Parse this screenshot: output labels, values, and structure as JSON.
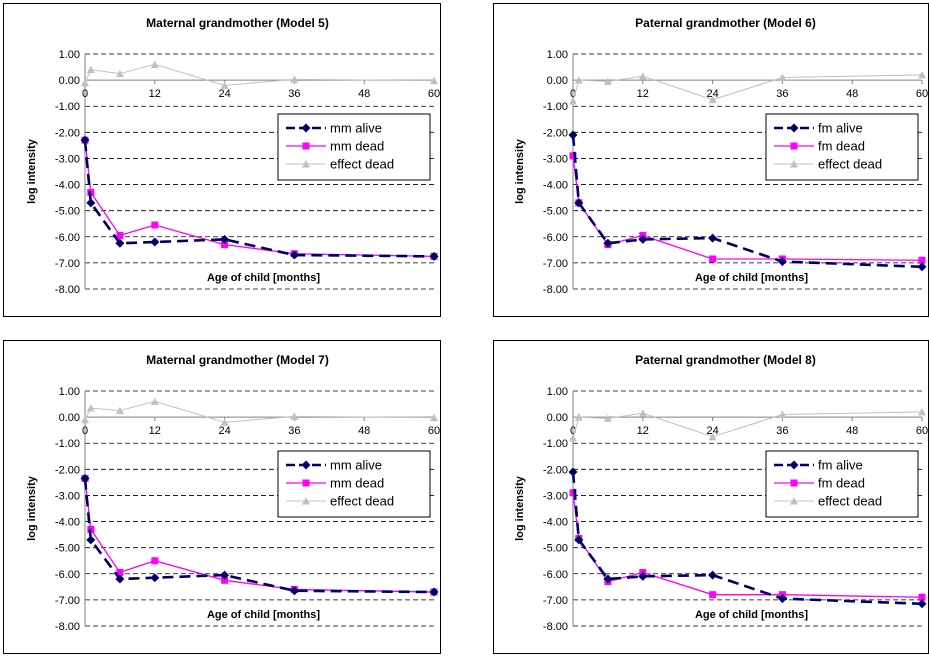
{
  "chart_data": [
    {
      "type": "line",
      "title": "Maternal grandmother (Model 5)",
      "xlabel": "Age of child [months]",
      "ylabel": "log intensity",
      "xlim": [
        0,
        60
      ],
      "ylim": [
        -8,
        1
      ],
      "x_ticks": [
        "0",
        "12",
        "24",
        "36",
        "48",
        "60"
      ],
      "y_ticks": [
        "1.00",
        "0.00",
        "-1.00",
        "-2.00",
        "-3.00",
        "-4.00",
        "-5.00",
        "-6.00",
        "-7.00",
        "-8.00"
      ],
      "legend_position": "right",
      "series": [
        {
          "name": "mm alive",
          "color": "#000066",
          "x": [
            0,
            1,
            6,
            12,
            24,
            36,
            60
          ],
          "y": [
            -2.3,
            -4.7,
            -6.25,
            -6.2,
            -6.1,
            -6.7,
            -6.75
          ]
        },
        {
          "name": "mm dead",
          "color": "#ff00ff",
          "x": [
            0,
            1,
            6,
            12,
            24,
            36,
            60
          ],
          "y": [
            -2.3,
            -4.3,
            -5.95,
            -5.55,
            -6.3,
            -6.65,
            -6.75
          ]
        },
        {
          "name": "effect dead",
          "color": "#c0c0c0",
          "x": [
            0,
            1,
            6,
            12,
            24,
            36,
            60
          ],
          "y": [
            -0.1,
            0.4,
            0.25,
            0.6,
            -0.2,
            0.03,
            -0.02
          ]
        }
      ]
    },
    {
      "type": "line",
      "title": "Paternal grandmother (Model 6)",
      "xlabel": "Age of child [months]",
      "ylabel": "log intensity",
      "xlim": [
        0,
        60
      ],
      "ylim": [
        -8,
        1
      ],
      "x_ticks": [
        "0",
        "12",
        "24",
        "36",
        "48",
        "60"
      ],
      "y_ticks": [
        "1.00",
        "0.00",
        "-1.00",
        "-2.00",
        "-3.00",
        "-4.00",
        "-5.00",
        "-6.00",
        "-7.00",
        "-8.00"
      ],
      "legend_position": "right",
      "series": [
        {
          "name": "fm alive",
          "color": "#000066",
          "x": [
            0,
            1,
            6,
            12,
            24,
            36,
            60
          ],
          "y": [
            -2.1,
            -4.7,
            -6.25,
            -6.1,
            -6.05,
            -6.95,
            -7.15
          ]
        },
        {
          "name": "fm dead",
          "color": "#ff00ff",
          "x": [
            0,
            1,
            6,
            12,
            24,
            36,
            60
          ],
          "y": [
            -2.9,
            -4.7,
            -6.3,
            -5.95,
            -6.85,
            -6.85,
            -6.9
          ]
        },
        {
          "name": "effect dead",
          "color": "#c0c0c0",
          "x": [
            0,
            1,
            6,
            12,
            24,
            36,
            60
          ],
          "y": [
            -0.8,
            0.0,
            -0.05,
            0.15,
            -0.75,
            0.1,
            0.2
          ]
        }
      ]
    },
    {
      "type": "line",
      "title": "Maternal grandmother (Model 7)",
      "xlabel": "Age of child [months]",
      "ylabel": "log intensity",
      "xlim": [
        0,
        60
      ],
      "ylim": [
        -8,
        1
      ],
      "x_ticks": [
        "0",
        "12",
        "24",
        "36",
        "48",
        "60"
      ],
      "y_ticks": [
        "1.00",
        "0.00",
        "-1.00",
        "-2.00",
        "-3.00",
        "-4.00",
        "-5.00",
        "-6.00",
        "-7.00",
        "-8.00"
      ],
      "legend_position": "right",
      "series": [
        {
          "name": "mm alive",
          "color": "#000066",
          "x": [
            0,
            1,
            6,
            12,
            24,
            36,
            60
          ],
          "y": [
            -2.35,
            -4.7,
            -6.2,
            -6.15,
            -6.05,
            -6.65,
            -6.7
          ]
        },
        {
          "name": "mm dead",
          "color": "#ff00ff",
          "x": [
            0,
            1,
            6,
            12,
            24,
            36,
            60
          ],
          "y": [
            -2.35,
            -4.3,
            -5.95,
            -5.5,
            -6.25,
            -6.6,
            -6.7
          ]
        },
        {
          "name": "effect dead",
          "color": "#c0c0c0",
          "x": [
            0,
            1,
            6,
            12,
            24,
            36,
            60
          ],
          "y": [
            -0.1,
            0.35,
            0.25,
            0.6,
            -0.2,
            0.03,
            -0.02
          ]
        }
      ]
    },
    {
      "type": "line",
      "title": "Paternal grandmother (Model 8)",
      "xlabel": "Age of child [months]",
      "ylabel": "log intensity",
      "xlim": [
        0,
        60
      ],
      "ylim": [
        -8,
        1
      ],
      "x_ticks": [
        "0",
        "12",
        "24",
        "36",
        "48",
        "60"
      ],
      "y_ticks": [
        "1.00",
        "0.00",
        "-1.00",
        "-2.00",
        "-3.00",
        "-4.00",
        "-5.00",
        "-6.00",
        "-7.00",
        "-8.00"
      ],
      "legend_position": "right",
      "series": [
        {
          "name": "fm alive",
          "color": "#000066",
          "x": [
            0,
            1,
            6,
            12,
            24,
            36,
            60
          ],
          "y": [
            -2.1,
            -4.7,
            -6.2,
            -6.1,
            -6.05,
            -6.95,
            -7.15
          ]
        },
        {
          "name": "fm dead",
          "color": "#ff00ff",
          "x": [
            0,
            1,
            6,
            12,
            24,
            36,
            60
          ],
          "y": [
            -2.9,
            -4.65,
            -6.3,
            -5.95,
            -6.8,
            -6.8,
            -6.9
          ]
        },
        {
          "name": "effect dead",
          "color": "#c0c0c0",
          "x": [
            0,
            1,
            6,
            12,
            24,
            36,
            60
          ],
          "y": [
            -0.8,
            0.0,
            -0.05,
            0.15,
            -0.75,
            0.1,
            0.2
          ]
        }
      ]
    }
  ]
}
